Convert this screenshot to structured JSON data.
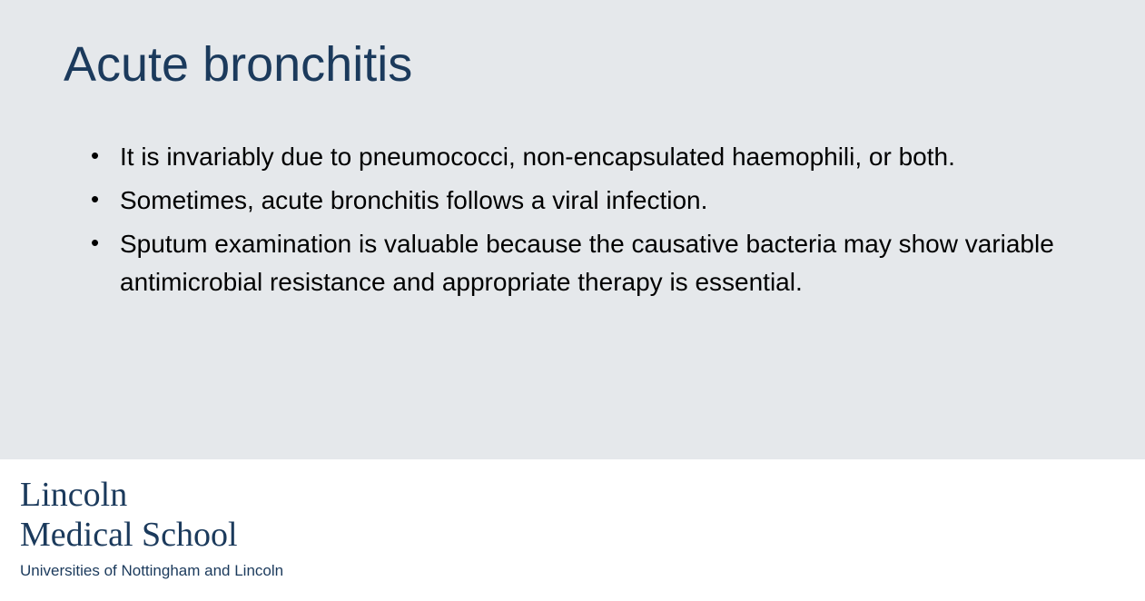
{
  "slide": {
    "title": "Acute bronchitis",
    "title_color": "#1b3a5c",
    "title_fontsize": 54,
    "background_color": "#e5e8eb",
    "bullets": [
      "It is invariably due to pneumococci, non-encapsulated haemophili, or both.",
      "Sometimes, acute bronchitis follows a viral infection.",
      "Sputum examination is valuable because the causative bacteria may show variable antimicrobial resistance and appropriate therapy is essential."
    ],
    "bullet_fontsize": 28,
    "bullet_color": "#000000"
  },
  "footer": {
    "logo_line1": "Lincoln",
    "logo_line2": "Medical School",
    "tagline": "Universities of Nottingham and Lincoln",
    "logo_color": "#1b3a5c",
    "background_color": "#ffffff"
  }
}
